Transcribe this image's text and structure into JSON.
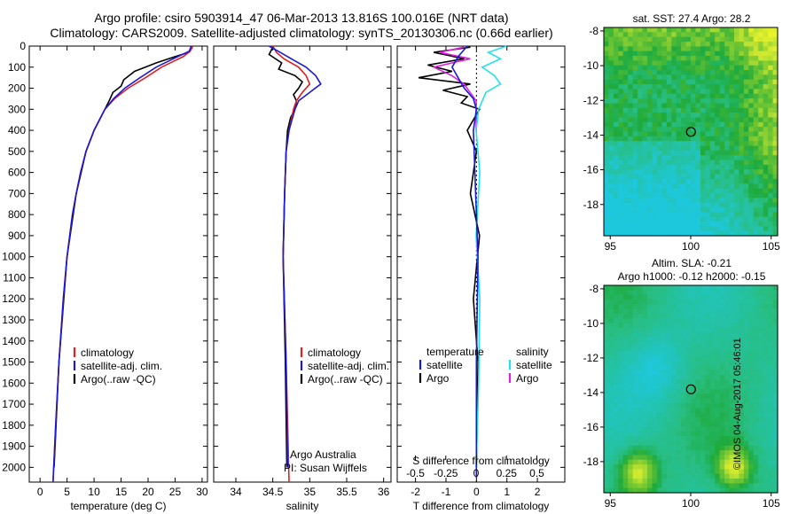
{
  "header": {
    "title_line1": "Argo profile: csiro 5903914_47 06-Mar-2013 13.816S 100.016E (NRT data)",
    "title_line2": "Climatology: CARS2009. Satellite-adjusted climatology: synTS_20130306.nc (0.66d earlier)"
  },
  "colors": {
    "climatology": "#e02020",
    "satellite": "#1a1ad6",
    "argo": "#000000",
    "argo_salinity_diff": "#e020e0",
    "satellite_salinity_diff": "#22e0ee"
  },
  "chart_data": [
    {
      "type": "line",
      "id": "temperature-profile",
      "xlabel": "temperature (deg C)",
      "ylabel": "",
      "xlim": [
        -2,
        31
      ],
      "ylim": [
        2070,
        0
      ],
      "xticks": [
        0,
        5,
        10,
        15,
        20,
        25,
        30
      ],
      "yticks": [
        0,
        100,
        200,
        300,
        400,
        500,
        600,
        700,
        800,
        900,
        1000,
        1100,
        1200,
        1300,
        1400,
        1500,
        1600,
        1700,
        1800,
        1900,
        2000
      ],
      "legend": [
        "climatology",
        "satellite-adj. clim.",
        "Argo(..raw -QC)"
      ],
      "legend_position": "lower-center",
      "series": [
        {
          "name": "climatology",
          "color": "#e02020",
          "depth": [
            0,
            25,
            50,
            75,
            100,
            150,
            200,
            250,
            300,
            400,
            500,
            600,
            700,
            800,
            1000,
            1200,
            1500,
            1800,
            2070
          ],
          "values": [
            28.3,
            27.8,
            26.5,
            24.5,
            22.5,
            19.5,
            16.3,
            13.8,
            12.0,
            10.0,
            8.5,
            7.5,
            6.7,
            6.0,
            5.0,
            4.3,
            3.5,
            2.9,
            2.4
          ]
        },
        {
          "name": "satellite-adj. clim.",
          "color": "#1a1ad6",
          "depth": [
            0,
            25,
            50,
            75,
            100,
            150,
            200,
            250,
            300,
            400,
            500,
            600,
            700,
            800,
            1000,
            1200,
            1500,
            1800,
            2070
          ],
          "values": [
            28.0,
            27.6,
            25.5,
            23.5,
            21.5,
            18.5,
            15.7,
            13.6,
            12.0,
            10.0,
            8.5,
            7.5,
            6.7,
            6.0,
            5.0,
            4.3,
            3.5,
            2.9,
            2.4
          ]
        },
        {
          "name": "Argo(..raw -QC)",
          "color": "#000000",
          "depth": [
            5,
            30,
            50,
            80,
            100,
            120,
            140,
            160,
            190,
            220,
            260,
            300,
            400,
            500,
            700,
            1000,
            1500,
            2000
          ],
          "values": [
            28.2,
            27.5,
            25.0,
            21.5,
            19.5,
            17.5,
            16.5,
            15.5,
            15.0,
            13.5,
            12.8,
            12.0,
            10.0,
            8.5,
            6.7,
            5.0,
            3.5,
            2.6
          ]
        }
      ]
    },
    {
      "type": "line",
      "id": "salinity-profile",
      "xlabel": "salinity",
      "xlim": [
        33.7,
        36.1
      ],
      "ylim": [
        2070,
        0
      ],
      "xticks": [
        34,
        34.5,
        35,
        35.5,
        36
      ],
      "legend": [
        "climatology",
        "satellite-adj. clim.",
        "Argo(..raw -QC)"
      ],
      "legend_position": "lower-center",
      "annotation_line1": "Argo Australia",
      "annotation_line2": "PI: Susan Wijffels",
      "series": [
        {
          "name": "climatology",
          "color": "#e02020",
          "depth": [
            0,
            30,
            60,
            100,
            140,
            180,
            220,
            260,
            300,
            350,
            400,
            500,
            700,
            1000,
            1500,
            2070
          ],
          "values": [
            34.5,
            34.55,
            34.65,
            34.85,
            34.95,
            35.0,
            34.9,
            34.82,
            34.78,
            34.75,
            34.72,
            34.68,
            34.66,
            34.64,
            34.68,
            34.72
          ]
        },
        {
          "name": "satellite-adj. clim.",
          "color": "#1a1ad6",
          "depth": [
            0,
            30,
            60,
            100,
            140,
            180,
            220,
            260,
            300,
            350,
            400,
            500,
            700,
            1000,
            1500,
            2000
          ],
          "values": [
            34.45,
            34.6,
            34.75,
            34.95,
            35.08,
            35.15,
            35.0,
            34.85,
            34.8,
            34.76,
            34.72,
            34.68,
            34.66,
            34.64,
            34.68,
            34.7
          ]
        },
        {
          "name": "Argo(..raw -QC)",
          "color": "#000000",
          "depth": [
            5,
            40,
            80,
            110,
            140,
            170,
            200,
            230,
            260,
            300,
            340,
            400,
            500,
            700,
            1000,
            1500,
            2000
          ],
          "values": [
            34.5,
            34.45,
            34.62,
            34.58,
            34.8,
            34.9,
            34.85,
            34.78,
            34.82,
            34.8,
            34.74,
            34.7,
            34.68,
            34.66,
            34.64,
            34.67,
            34.69
          ]
        }
      ]
    },
    {
      "type": "line",
      "id": "difference-profile",
      "xlabel": "T difference from climatology",
      "xlabel_top": "S difference from climatology",
      "xlim": [
        -2.6,
        2.9
      ],
      "ylim": [
        2070,
        0
      ],
      "xticks": [
        -2,
        -1,
        0,
        1,
        2
      ],
      "s_xticks": [
        -0.5,
        -0.25,
        0,
        0.25,
        0.5
      ],
      "s_xlim": [
        -0.65,
        0.73
      ],
      "legend_title_temperature": "temperature",
      "legend_title_salinity": "salinity",
      "legend_temperature": [
        "satellite",
        "Argo"
      ],
      "legend_salinity": [
        "satellite",
        "Argo"
      ],
      "legend_position": "lower-center",
      "series": [
        {
          "name": "T satellite",
          "color": "#1a1ad6",
          "depth": [
            0,
            50,
            100,
            150,
            200,
            250,
            300,
            400,
            600,
            800,
            1000,
            1500,
            2050
          ],
          "values": [
            -0.3,
            -0.6,
            -0.8,
            -0.6,
            -0.4,
            -0.1,
            0.0,
            -0.1,
            -0.05,
            0.0,
            0.05,
            0.0,
            0.0
          ]
        },
        {
          "name": "T Argo",
          "color": "#000000",
          "depth": [
            5,
            30,
            60,
            90,
            120,
            150,
            180,
            210,
            240,
            270,
            300,
            400,
            500,
            700,
            900,
            1200,
            1500,
            2000
          ],
          "values": [
            -0.2,
            -1.4,
            -0.4,
            -1.6,
            -0.8,
            -1.9,
            -0.2,
            -1.1,
            -0.3,
            -0.5,
            0.1,
            -0.3,
            0.0,
            -0.2,
            0.1,
            -0.1,
            0.05,
            0.0
          ]
        },
        {
          "name": "S satellite",
          "color": "#22e0ee",
          "depth": [
            0,
            30,
            60,
            100,
            140,
            180,
            220,
            260,
            300,
            400,
            600,
            900,
            1200,
            1600,
            2000
          ],
          "values": [
            0.25,
            0.1,
            0.2,
            0.05,
            0.15,
            0.2,
            0.08,
            0.05,
            0.02,
            0.0,
            0.03,
            0.0,
            0.03,
            0.02,
            0.0
          ]
        },
        {
          "name": "S Argo",
          "color": "#e020e0",
          "depth": [
            5,
            30,
            60,
            100,
            140,
            180,
            220,
            260,
            300,
            400
          ],
          "values": [
            -0.1,
            -0.3,
            -0.05,
            -0.35,
            -0.2,
            -0.1,
            -0.05,
            0.0,
            0.0,
            0.0
          ]
        }
      ]
    },
    {
      "type": "heatmap",
      "id": "sst-map",
      "title": "sat. SST: 27.4  Argo: 28.2",
      "xlim": [
        94.6,
        105.4
      ],
      "ylim": [
        -19.8,
        -7.8
      ],
      "xticks": [
        95,
        100,
        105
      ],
      "yticks": [
        -8,
        -10,
        -12,
        -14,
        -16,
        -18
      ],
      "marker": {
        "lon": 100.016,
        "lat": -13.816
      }
    },
    {
      "type": "heatmap",
      "id": "sla-map",
      "title_line1": "Altim. SLA: -0.21",
      "title_line2": "Argo h1000: -0.12  h2000: -0.15",
      "xlim": [
        94.6,
        105.4
      ],
      "ylim": [
        -19.8,
        -7.8
      ],
      "xticks": [
        95,
        100,
        105
      ],
      "yticks": [
        -8,
        -10,
        -12,
        -14,
        -16,
        -18
      ],
      "marker": {
        "lon": 100.016,
        "lat": -13.816
      }
    }
  ],
  "stamp": "©IMOS 04-Aug-2017 05:46:01"
}
